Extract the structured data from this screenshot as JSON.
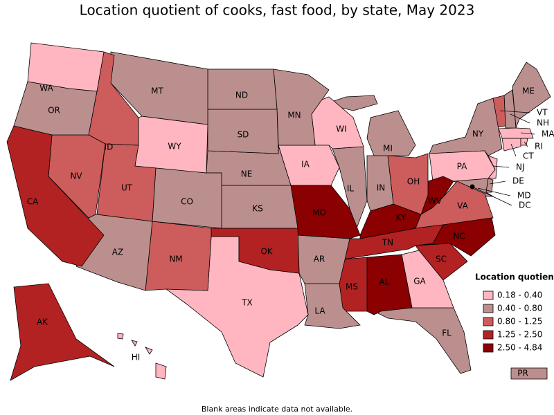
{
  "title": "Location quotient of cooks, fast food, by state, May 2023",
  "footnote": "Blank areas indicate data not available.",
  "legend": {
    "title": "Location quotient",
    "bins": [
      {
        "label": "0.18 - 0.40",
        "color": "#ffb6c1"
      },
      {
        "label": "0.40 - 0.80",
        "color": "#bc8f8f"
      },
      {
        "label": "0.80 - 1.25",
        "color": "#cd5c5c"
      },
      {
        "label": "1.25 - 2.50",
        "color": "#b22222"
      },
      {
        "label": "2.50 - 4.84",
        "color": "#8b0000"
      }
    ]
  },
  "states": [
    {
      "label": "WA",
      "color": "#ffb6c1"
    },
    {
      "label": "OR",
      "color": "#bc8f8f"
    },
    {
      "label": "CA",
      "color": "#b22222"
    },
    {
      "label": "NV",
      "color": "#cd5c5c"
    },
    {
      "label": "ID",
      "color": "#cd5c5c"
    },
    {
      "label": "MT",
      "color": "#bc8f8f"
    },
    {
      "label": "WY",
      "color": "#ffb6c1"
    },
    {
      "label": "UT",
      "color": "#cd5c5c"
    },
    {
      "label": "AZ",
      "color": "#bc8f8f"
    },
    {
      "label": "CO",
      "color": "#bc8f8f"
    },
    {
      "label": "NM",
      "color": "#cd5c5c"
    },
    {
      "label": "ND",
      "color": "#bc8f8f"
    },
    {
      "label": "SD",
      "color": "#bc8f8f"
    },
    {
      "label": "NE",
      "color": "#bc8f8f"
    },
    {
      "label": "KS",
      "color": "#bc8f8f"
    },
    {
      "label": "OK",
      "color": "#b22222"
    },
    {
      "label": "TX",
      "color": "#ffb6c1"
    },
    {
      "label": "MN",
      "color": "#bc8f8f"
    },
    {
      "label": "IA",
      "color": "#ffb6c1"
    },
    {
      "label": "MO",
      "color": "#8b0000"
    },
    {
      "label": "AR",
      "color": "#bc8f8f"
    },
    {
      "label": "LA",
      "color": "#bc8f8f"
    },
    {
      "label": "WI",
      "color": "#ffb6c1"
    },
    {
      "label": "IL",
      "color": "#bc8f8f"
    },
    {
      "label": "MI",
      "color": "#bc8f8f"
    },
    {
      "label": "IN",
      "color": "#bc8f8f"
    },
    {
      "label": "OH",
      "color": "#cd5c5c"
    },
    {
      "label": "KY",
      "color": "#8b0000"
    },
    {
      "label": "TN",
      "color": "#b22222"
    },
    {
      "label": "MS",
      "color": "#b22222"
    },
    {
      "label": "AL",
      "color": "#8b0000"
    },
    {
      "label": "GA",
      "color": "#ffb6c1"
    },
    {
      "label": "FL",
      "color": "#bc8f8f"
    },
    {
      "label": "SC",
      "color": "#b22222"
    },
    {
      "label": "NC",
      "color": "#8b0000"
    },
    {
      "label": "VA",
      "color": "#cd5c5c"
    },
    {
      "label": "WV",
      "color": "#8b0000"
    },
    {
      "label": "PA",
      "color": "#ffb6c1"
    },
    {
      "label": "NY",
      "color": "#bc8f8f"
    },
    {
      "label": "VT",
      "color": "#cd5c5c"
    },
    {
      "label": "NH",
      "color": "#bc8f8f"
    },
    {
      "label": "ME",
      "color": "#bc8f8f"
    },
    {
      "label": "MA",
      "color": "#ffb6c1"
    },
    {
      "label": "RI",
      "color": "#ffb6c1"
    },
    {
      "label": "CT",
      "color": "#ffb6c1"
    },
    {
      "label": "NJ",
      "color": "#ffb6c1"
    },
    {
      "label": "DE",
      "color": "#bc8f8f"
    },
    {
      "label": "MD",
      "color": "#bc8f8f"
    },
    {
      "label": "DC",
      "color": "#000000"
    },
    {
      "label": "AK",
      "color": "#b22222"
    },
    {
      "label": "HI",
      "color": "#ffb6c1"
    },
    {
      "label": "PR",
      "color": "#bc8f8f"
    }
  ]
}
